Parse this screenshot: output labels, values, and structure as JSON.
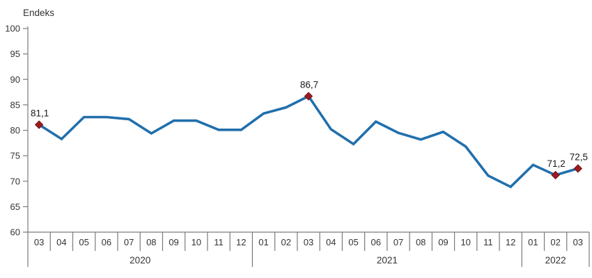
{
  "chart_data": {
    "type": "line",
    "title": "Endeks",
    "ylabel": "Endeks",
    "ylim": [
      60,
      100
    ],
    "yticks": [
      100,
      95,
      90,
      85,
      80,
      75,
      70,
      65,
      60
    ],
    "grid": false,
    "legend": "none",
    "x_months": [
      "03",
      "04",
      "05",
      "06",
      "07",
      "08",
      "09",
      "10",
      "11",
      "12",
      "01",
      "02",
      "03",
      "04",
      "05",
      "06",
      "07",
      "08",
      "09",
      "10",
      "11",
      "12",
      "01",
      "02",
      "03"
    ],
    "year_groups": [
      {
        "label": "2020",
        "start": 0,
        "count": 10
      },
      {
        "label": "2021",
        "start": 10,
        "count": 12
      },
      {
        "label": "2022",
        "start": 22,
        "count": 3
      }
    ],
    "series": [
      {
        "name": "Endeks",
        "values": [
          81.1,
          78.3,
          82.6,
          82.6,
          82.2,
          79.4,
          81.9,
          81.9,
          80.1,
          80.1,
          83.3,
          84.5,
          86.7,
          80.2,
          77.3,
          81.7,
          79.5,
          78.2,
          79.7,
          76.8,
          71.1,
          68.9,
          73.2,
          71.2,
          72.5
        ]
      }
    ],
    "annotations": [
      {
        "index": 0,
        "label": "81,1",
        "value": 81.1
      },
      {
        "index": 12,
        "label": "86,7",
        "value": 86.7
      },
      {
        "index": 23,
        "label": "71,2",
        "value": 71.2
      },
      {
        "index": 24,
        "label": "72,5",
        "value": 72.5
      }
    ],
    "colors": {
      "line": "#216FAC",
      "marker_fill": "#9C1B1E",
      "marker_stroke": "#721114",
      "axis": "#7a7a7a",
      "tick_text": "#333333",
      "annotation_text": "#1a1a1a",
      "background": "#ffffff"
    }
  }
}
